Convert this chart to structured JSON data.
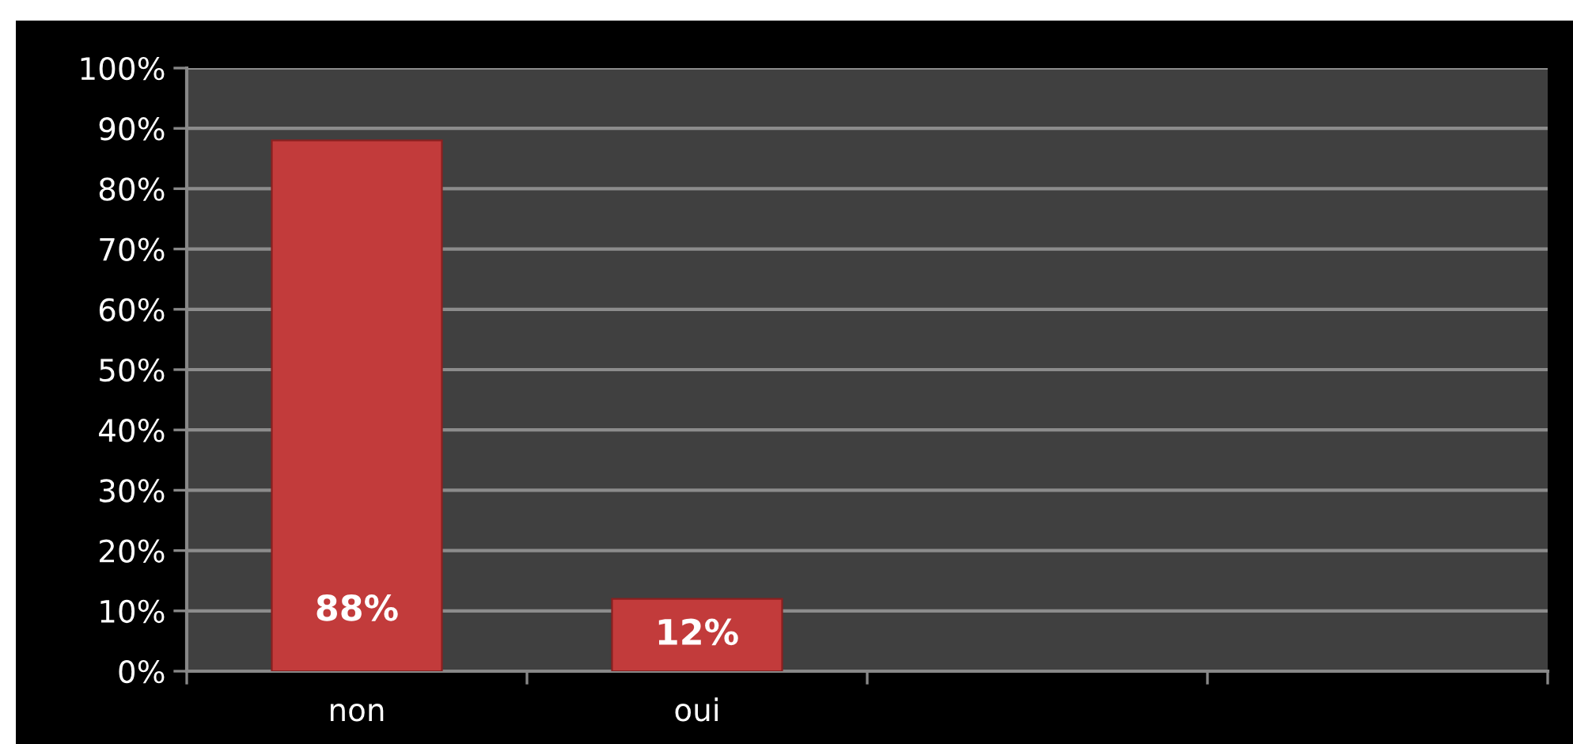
{
  "chart_data": {
    "type": "bar",
    "categories": [
      "non",
      "oui",
      null,
      null
    ],
    "values": [
      88,
      12,
      null,
      null
    ],
    "value_labels": [
      "88%",
      "12%",
      null,
      null
    ],
    "color": "#c23b3b",
    "ylim": [
      0,
      100
    ],
    "yticks": [
      {
        "value": 0,
        "label": "0%"
      },
      {
        "value": 10,
        "label": "10%"
      },
      {
        "value": 20,
        "label": "20%"
      },
      {
        "value": 30,
        "label": "30%"
      },
      {
        "value": 40,
        "label": "40%"
      },
      {
        "value": 50,
        "label": "50%"
      },
      {
        "value": 60,
        "label": "60%"
      },
      {
        "value": 70,
        "label": "70%"
      },
      {
        "value": 80,
        "label": "80%"
      },
      {
        "value": 90,
        "label": "90%"
      },
      {
        "value": 100,
        "label": "100%"
      }
    ],
    "grid": "y"
  }
}
